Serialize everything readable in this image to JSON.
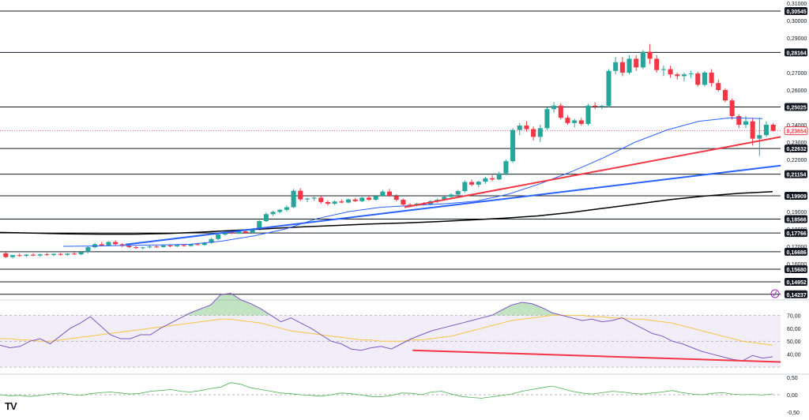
{
  "chart_data": {
    "type": "candlestick",
    "title": "",
    "price_panel": {
      "ylim": [
        0.14,
        0.31
      ],
      "axis_ticks": [
        "0,31000",
        "0,30000",
        "0,29000",
        "0,27000",
        "0,26000",
        "0,24000",
        "0,23000",
        "0,22000",
        "0,19000",
        "0,18000",
        "0,17000",
        "0,16000"
      ],
      "level_lines": [
        {
          "value": 0.30545,
          "label": "0,30545"
        },
        {
          "value": 0.28164,
          "label": "0,28164"
        },
        {
          "value": 0.25025,
          "label": "0,25025"
        },
        {
          "value": 0.22632,
          "label": "0,22632"
        },
        {
          "value": 0.21154,
          "label": "0,21154"
        },
        {
          "value": 0.19909,
          "label": "0,19909"
        },
        {
          "value": 0.18566,
          "label": "0,18566"
        },
        {
          "value": 0.17766,
          "label": "0,17766"
        },
        {
          "value": 0.16686,
          "label": "0,16686"
        },
        {
          "value": 0.1568,
          "label": "0,15680"
        },
        {
          "value": 0.14952,
          "label": "0,14952"
        },
        {
          "value": 0.14237,
          "label": "0,14237"
        }
      ],
      "current_price": {
        "value": 0.23654,
        "label": "0,23654",
        "color": "#f23645"
      },
      "candles_ohlc": [
        [
          0.166,
          0.1665,
          0.1633,
          0.1638
        ],
        [
          0.1638,
          0.1652,
          0.163,
          0.1649
        ],
        [
          0.1649,
          0.1658,
          0.164,
          0.1645
        ],
        [
          0.1645,
          0.1655,
          0.1638,
          0.1652
        ],
        [
          0.1652,
          0.166,
          0.1643,
          0.1647
        ],
        [
          0.1647,
          0.1657,
          0.164,
          0.1654
        ],
        [
          0.1654,
          0.1662,
          0.1645,
          0.165
        ],
        [
          0.165,
          0.166,
          0.1642,
          0.1656
        ],
        [
          0.1656,
          0.1662,
          0.1646,
          0.1651
        ],
        [
          0.1651,
          0.1661,
          0.1645,
          0.1658
        ],
        [
          0.1658,
          0.1666,
          0.165,
          0.1654
        ],
        [
          0.1654,
          0.167,
          0.1648,
          0.1667
        ],
        [
          0.1667,
          0.17,
          0.166,
          0.1695
        ],
        [
          0.1695,
          0.172,
          0.1688,
          0.1712
        ],
        [
          0.1712,
          0.1725,
          0.17,
          0.1705
        ],
        [
          0.1705,
          0.173,
          0.17,
          0.1725
        ],
        [
          0.1725,
          0.1735,
          0.1705,
          0.1712
        ],
        [
          0.1712,
          0.1718,
          0.1695,
          0.1702
        ],
        [
          0.1702,
          0.1708,
          0.169,
          0.1695
        ],
        [
          0.1695,
          0.1702,
          0.1685,
          0.169
        ],
        [
          0.169,
          0.1698,
          0.1682,
          0.1694
        ],
        [
          0.1694,
          0.1705,
          0.1688,
          0.1699
        ],
        [
          0.1699,
          0.1706,
          0.169,
          0.1696
        ],
        [
          0.1696,
          0.171,
          0.1692,
          0.1705
        ],
        [
          0.1705,
          0.1712,
          0.1695,
          0.17
        ],
        [
          0.17,
          0.171,
          0.1695,
          0.1707
        ],
        [
          0.1707,
          0.1712,
          0.1698,
          0.1702
        ],
        [
          0.1702,
          0.1715,
          0.1698,
          0.1712
        ],
        [
          0.1712,
          0.172,
          0.1705,
          0.1708
        ],
        [
          0.1708,
          0.1725,
          0.1703,
          0.172
        ],
        [
          0.172,
          0.1748,
          0.1715,
          0.1742
        ],
        [
          0.1742,
          0.1775,
          0.1735,
          0.1768
        ],
        [
          0.1768,
          0.179,
          0.176,
          0.1782
        ],
        [
          0.1782,
          0.1795,
          0.177,
          0.1776
        ],
        [
          0.1776,
          0.179,
          0.177,
          0.1786
        ],
        [
          0.1786,
          0.1792,
          0.1772,
          0.1778
        ],
        [
          0.1778,
          0.18,
          0.1772,
          0.1795
        ],
        [
          0.1795,
          0.185,
          0.179,
          0.1845
        ],
        [
          0.1845,
          0.1895,
          0.184,
          0.1885
        ],
        [
          0.1885,
          0.1905,
          0.1875,
          0.1898
        ],
        [
          0.1898,
          0.1915,
          0.189,
          0.191
        ],
        [
          0.191,
          0.1935,
          0.19,
          0.1925
        ],
        [
          0.1925,
          0.203,
          0.192,
          0.202
        ],
        [
          0.202,
          0.2035,
          0.196,
          0.197
        ],
        [
          0.197,
          0.198,
          0.1955,
          0.1975
        ],
        [
          0.1975,
          0.1985,
          0.1962,
          0.198
        ],
        [
          0.198,
          0.199,
          0.1945,
          0.1955
        ],
        [
          0.1955,
          0.1965,
          0.1935,
          0.1945
        ],
        [
          0.1945,
          0.1965,
          0.1938,
          0.1958
        ],
        [
          0.1958,
          0.197,
          0.1948,
          0.1952
        ],
        [
          0.1952,
          0.1975,
          0.1948,
          0.197
        ],
        [
          0.197,
          0.1978,
          0.1955,
          0.196
        ],
        [
          0.196,
          0.1985,
          0.1955,
          0.198
        ],
        [
          0.198,
          0.199,
          0.1962,
          0.1968
        ],
        [
          0.1968,
          0.1995,
          0.1962,
          0.199
        ],
        [
          0.199,
          0.2025,
          0.1985,
          0.2015
        ],
        [
          0.2015,
          0.203,
          0.1985,
          0.199
        ],
        [
          0.199,
          0.2,
          0.196,
          0.1968
        ],
        [
          0.1968,
          0.1975,
          0.1935,
          0.194
        ],
        [
          0.194,
          0.1948,
          0.1925,
          0.1938
        ],
        [
          0.1938,
          0.195,
          0.193,
          0.1946
        ],
        [
          0.1946,
          0.1955,
          0.1935,
          0.194
        ],
        [
          0.194,
          0.1965,
          0.1936,
          0.196
        ],
        [
          0.196,
          0.1975,
          0.195,
          0.1968
        ],
        [
          0.1968,
          0.199,
          0.1962,
          0.1985
        ],
        [
          0.1985,
          0.2005,
          0.1978,
          0.1998
        ],
        [
          0.1998,
          0.2025,
          0.199,
          0.2018
        ],
        [
          0.2018,
          0.208,
          0.201,
          0.207
        ],
        [
          0.207,
          0.2085,
          0.2045,
          0.2055
        ],
        [
          0.2055,
          0.2078,
          0.204,
          0.2072
        ],
        [
          0.2072,
          0.21,
          0.206,
          0.2092
        ],
        [
          0.2092,
          0.211,
          0.2075,
          0.2085
        ],
        [
          0.2085,
          0.213,
          0.208,
          0.212
        ],
        [
          0.212,
          0.22,
          0.211,
          0.219
        ],
        [
          0.219,
          0.238,
          0.218,
          0.237
        ],
        [
          0.237,
          0.241,
          0.234,
          0.2395
        ],
        [
          0.2395,
          0.242,
          0.236,
          0.2375
        ],
        [
          0.2375,
          0.239,
          0.231,
          0.233
        ],
        [
          0.233,
          0.24,
          0.23,
          0.238
        ],
        [
          0.238,
          0.25,
          0.237,
          0.249
        ],
        [
          0.249,
          0.253,
          0.247,
          0.251
        ],
        [
          0.251,
          0.2525,
          0.243,
          0.244
        ],
        [
          0.244,
          0.2455,
          0.24,
          0.241
        ],
        [
          0.241,
          0.2435,
          0.2385,
          0.2425
        ],
        [
          0.2425,
          0.244,
          0.2395,
          0.2405
        ],
        [
          0.2405,
          0.252,
          0.2395,
          0.251
        ],
        [
          0.251,
          0.253,
          0.249,
          0.2505
        ],
        [
          0.2505,
          0.2515,
          0.249,
          0.2508
        ],
        [
          0.2508,
          0.272,
          0.25,
          0.271
        ],
        [
          0.271,
          0.279,
          0.269,
          0.276
        ],
        [
          0.276,
          0.279,
          0.268,
          0.27
        ],
        [
          0.27,
          0.28,
          0.269,
          0.278
        ],
        [
          0.278,
          0.28,
          0.271,
          0.273
        ],
        [
          0.273,
          0.283,
          0.272,
          0.282
        ],
        [
          0.282,
          0.2865,
          0.275,
          0.278
        ],
        [
          0.278,
          0.28,
          0.27,
          0.2715
        ],
        [
          0.2715,
          0.274,
          0.268,
          0.272
        ],
        [
          0.272,
          0.274,
          0.267,
          0.269
        ],
        [
          0.269,
          0.27,
          0.266,
          0.268
        ],
        [
          0.268,
          0.27,
          0.265,
          0.269
        ],
        [
          0.269,
          0.271,
          0.267,
          0.2695
        ],
        [
          0.2695,
          0.2705,
          0.262,
          0.263
        ],
        [
          0.263,
          0.271,
          0.262,
          0.27
        ],
        [
          0.27,
          0.272,
          0.262,
          0.264
        ],
        [
          0.264,
          0.266,
          0.259,
          0.26
        ],
        [
          0.26,
          0.261,
          0.253,
          0.254
        ],
        [
          0.254,
          0.255,
          0.243,
          0.245
        ],
        [
          0.245,
          0.246,
          0.238,
          0.24
        ],
        [
          0.24,
          0.245,
          0.238,
          0.242
        ],
        [
          0.242,
          0.244,
          0.228,
          0.232
        ],
        [
          0.232,
          0.244,
          0.222,
          0.234
        ],
        [
          0.234,
          0.242,
          0.233,
          0.24
        ],
        [
          0.24,
          0.241,
          0.236,
          0.2365
        ]
      ],
      "ma_50_blue": [
        0.17,
        0.1702,
        0.1705,
        0.1708,
        0.1712,
        0.173,
        0.176,
        0.18,
        0.186,
        0.19,
        0.1925,
        0.1935,
        0.1945,
        0.196,
        0.2,
        0.206,
        0.213,
        0.221,
        0.23,
        0.237,
        0.242,
        0.244,
        0.2435
      ],
      "ma_200_black": [
        0.178,
        0.1776,
        0.1772,
        0.177,
        0.177,
        0.1774,
        0.1782,
        0.1792,
        0.1802,
        0.1812,
        0.182,
        0.1828,
        0.1834,
        0.1842,
        0.1852,
        0.1862,
        0.1875,
        0.1895,
        0.192,
        0.1945,
        0.197,
        0.199,
        0.2005,
        0.2015
      ],
      "trend_lines": [
        {
          "name": "red-trendline",
          "from": [
            0.5,
            0.1925
          ],
          "to": [
            0.965,
            0.233
          ],
          "color": "#f23645"
        },
        {
          "name": "blue-trendline",
          "from": [
            0.155,
            0.171
          ],
          "to": [
            0.965,
            0.2165
          ],
          "color": "#2962ff"
        }
      ]
    },
    "rsi_panel": {
      "ylim": [
        27,
        80
      ],
      "ticks": [
        "70,00",
        "60,00",
        "50,00",
        "40,00"
      ],
      "overbought": 70,
      "oversold": 30,
      "rsi_purple": [
        47,
        45,
        46,
        50,
        52,
        48,
        54,
        60,
        64,
        69,
        62,
        55,
        52,
        52,
        55,
        55,
        60,
        64,
        68,
        72,
        75,
        78,
        86,
        87,
        82,
        79,
        75,
        70,
        65,
        68,
        64,
        60,
        55,
        50,
        48,
        44,
        43,
        45,
        46,
        44,
        48,
        52,
        55,
        58,
        60,
        62,
        64,
        66,
        68,
        70,
        74,
        78,
        80,
        79,
        76,
        72,
        70,
        68,
        66,
        67,
        65,
        66,
        68,
        64,
        60,
        56,
        54,
        50,
        48,
        45,
        42,
        40,
        38,
        36,
        35,
        39,
        37,
        38
      ],
      "rsi_ma_yellow": [
        52,
        52,
        51,
        51,
        50,
        50,
        51,
        52,
        53,
        54,
        55,
        56,
        57,
        58,
        59,
        60,
        61,
        62,
        63,
        64,
        65,
        66,
        67,
        67,
        66,
        65,
        64,
        62,
        60,
        58,
        57,
        56,
        55,
        54,
        53,
        52,
        51,
        51,
        50,
        50,
        50,
        51,
        51,
        52,
        53,
        54,
        56,
        58,
        60,
        62,
        64,
        66,
        67,
        68,
        69,
        70,
        70,
        70,
        70,
        69,
        69,
        68,
        68,
        67,
        67,
        66,
        65,
        64,
        62,
        60,
        58,
        56,
        54,
        52,
        50,
        49,
        48,
        47
      ],
      "divergence_line": {
        "from": [
          0.51,
          43
        ],
        "to": [
          0.965,
          34
        ],
        "color": "#f23645"
      }
    },
    "oscillator_panel": {
      "ylim": [
        -0.5,
        0.5
      ],
      "ticks": [
        "0,50",
        "0,00",
        "-0,50"
      ],
      "values": [
        0.0,
        -0.03,
        -0.02,
        -0.05,
        -0.02,
        0.02,
        0.05,
        0.01,
        -0.02,
        0.03,
        0.06,
        0.08,
        0.05,
        0.02,
        0.04,
        0.1,
        0.12,
        0.15,
        0.1,
        0.08,
        0.12,
        0.18,
        0.22,
        0.35,
        0.3,
        0.2,
        0.15,
        0.1,
        0.05,
        0.03,
        0.0,
        -0.02,
        -0.04,
        0.0,
        0.05,
        0.03,
        -0.01,
        -0.05,
        -0.06,
        -0.02,
        0.05,
        0.04,
        0.0,
        0.08,
        0.1,
        0.02,
        -0.05,
        -0.08,
        -0.1,
        -0.06,
        -0.02,
        0.02,
        0.1,
        0.15,
        0.2,
        0.25,
        0.18,
        0.1,
        0.05,
        0.02,
        0.06,
        0.1,
        0.08,
        0.04,
        0.02,
        0.05,
        0.08,
        0.12,
        0.06,
        0.02,
        0.0,
        0.04,
        0.06,
        0.02,
        0.0,
        0.01,
        -0.01,
        0.02
      ]
    }
  },
  "branding": {
    "logo_text": "TV"
  },
  "colors": {
    "up": "#26a69a",
    "down": "#f23645",
    "ma50": "#2962ff",
    "ma200": "#000000",
    "rsi": "#7e57c2",
    "rsi_ma": "#f7c548",
    "osc": "#4caf50",
    "grid": "#131722"
  }
}
